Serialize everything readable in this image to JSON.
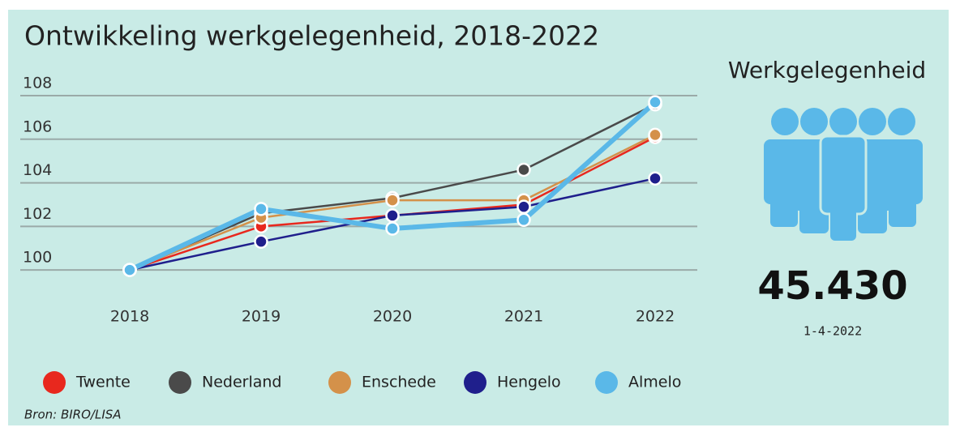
{
  "chart_data": {
    "type": "line",
    "title": "Ontwikkeling werkgelegenheid, 2018-2022",
    "categories": [
      "2018",
      "2019",
      "2020",
      "2021",
      "2022"
    ],
    "series": [
      {
        "name": "Twente",
        "color": "#e8281e",
        "values": [
          100,
          102.0,
          102.5,
          103.0,
          106.1
        ]
      },
      {
        "name": "Nederland",
        "color": "#4a4a4a",
        "values": [
          100,
          102.6,
          103.3,
          104.6,
          107.6
        ]
      },
      {
        "name": "Enschede",
        "color": "#d4914a",
        "values": [
          100,
          102.4,
          103.2,
          103.2,
          106.2
        ]
      },
      {
        "name": "Hengelo",
        "color": "#1f1f8c",
        "values": [
          100,
          101.3,
          102.5,
          102.9,
          104.2
        ]
      },
      {
        "name": "Almelo",
        "color": "#5ab8e8",
        "values": [
          100,
          102.8,
          101.9,
          102.3,
          107.7
        ]
      }
    ],
    "ylim": [
      99,
      108.5
    ],
    "yticks": [
      100,
      102,
      104,
      106,
      108
    ],
    "grid": true,
    "legend": "bottom",
    "source": "Bron: BIRO/LISA"
  },
  "kpi": {
    "label": "Werkgelegenheid",
    "value": "45.430",
    "date": "1-4-2022"
  }
}
